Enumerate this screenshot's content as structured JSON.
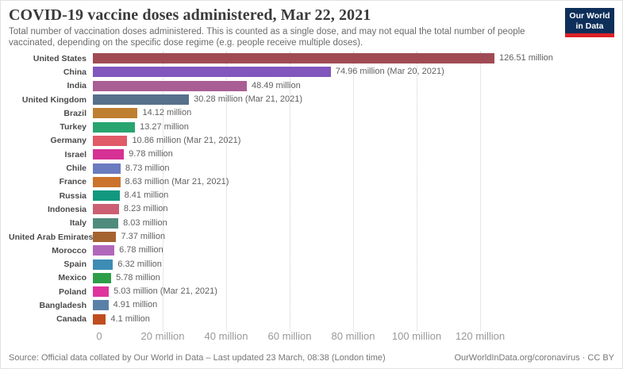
{
  "header": {
    "title": "COVID-19 vaccine doses administered, Mar 22, 2021",
    "subtitle": "Total number of vaccination doses administered. This is counted as a single dose, and may not equal the total number of people vaccinated, depending on the specific dose regime (e.g. people receive multiple doses).",
    "logo": {
      "line1": "Our World",
      "line2": "in Data",
      "bg_color": "#0e2f5a",
      "accent_color": "#dc2327"
    }
  },
  "chart_data": {
    "type": "bar",
    "orientation": "horizontal",
    "title": "COVID-19 vaccine doses administered, Mar 22, 2021",
    "xlabel": "",
    "ylabel": "",
    "unit": "million doses",
    "xlim": [
      0,
      130
    ],
    "grid": "dotted-vertical",
    "legend": "none",
    "x_ticks": [
      {
        "value": 0,
        "label": "0"
      },
      {
        "value": 20,
        "label": "20 million"
      },
      {
        "value": 40,
        "label": "40 million"
      },
      {
        "value": 60,
        "label": "60 million"
      },
      {
        "value": 80,
        "label": "80 million"
      },
      {
        "value": 100,
        "label": "100 million"
      },
      {
        "value": 120,
        "label": "120 million"
      }
    ],
    "series": [
      {
        "country": "United States",
        "value_million": 126.51,
        "label": "126.51 million",
        "color": "#a04b54"
      },
      {
        "country": "China",
        "value_million": 74.96,
        "label": "74.96 million (Mar 20, 2021)",
        "color": "#8156bd"
      },
      {
        "country": "India",
        "value_million": 48.49,
        "label": "48.49 million",
        "color": "#a95e93"
      },
      {
        "country": "United Kingdom",
        "value_million": 30.28,
        "label": "30.28 million (Mar 21, 2021)",
        "color": "#57708b"
      },
      {
        "country": "Brazil",
        "value_million": 14.12,
        "label": "14.12 million",
        "color": "#bf7f31"
      },
      {
        "country": "Turkey",
        "value_million": 13.27,
        "label": "13.27 million",
        "color": "#28a470"
      },
      {
        "country": "Germany",
        "value_million": 10.86,
        "label": "10.86 million (Mar 21, 2021)",
        "color": "#e05a68"
      },
      {
        "country": "Israel",
        "value_million": 9.78,
        "label": "9.78 million",
        "color": "#d63194"
      },
      {
        "country": "Chile",
        "value_million": 8.73,
        "label": "8.73 million",
        "color": "#6b7bbf"
      },
      {
        "country": "France",
        "value_million": 8.63,
        "label": "8.63 million (Mar 21, 2021)",
        "color": "#cb732d"
      },
      {
        "country": "Russia",
        "value_million": 8.41,
        "label": "8.41 million",
        "color": "#12987f"
      },
      {
        "country": "Indonesia",
        "value_million": 8.23,
        "label": "8.23 million",
        "color": "#cc5f73"
      },
      {
        "country": "Italy",
        "value_million": 8.03,
        "label": "8.03 million",
        "color": "#4f8c7e"
      },
      {
        "country": "United Arab Emirates",
        "value_million": 7.37,
        "label": "7.37 million",
        "color": "#a5632f"
      },
      {
        "country": "Morocco",
        "value_million": 6.78,
        "label": "6.78 million",
        "color": "#b167ba"
      },
      {
        "country": "Spain",
        "value_million": 6.32,
        "label": "6.32 million",
        "color": "#3d8cb4"
      },
      {
        "country": "Mexico",
        "value_million": 5.78,
        "label": "5.78 million",
        "color": "#2e9e49"
      },
      {
        "country": "Poland",
        "value_million": 5.03,
        "label": "5.03 million (Mar 21, 2021)",
        "color": "#df339e"
      },
      {
        "country": "Bangladesh",
        "value_million": 4.91,
        "label": "4.91 million",
        "color": "#5980a7"
      },
      {
        "country": "Canada",
        "value_million": 4.1,
        "label": "4.1 million",
        "color": "#c04d20"
      }
    ]
  },
  "footer": {
    "source": "Source: Official data collated by Our World in Data – Last updated 23 March, 08:38 (London time)",
    "link": "OurWorldInData.org/coronavirus · CC BY"
  }
}
